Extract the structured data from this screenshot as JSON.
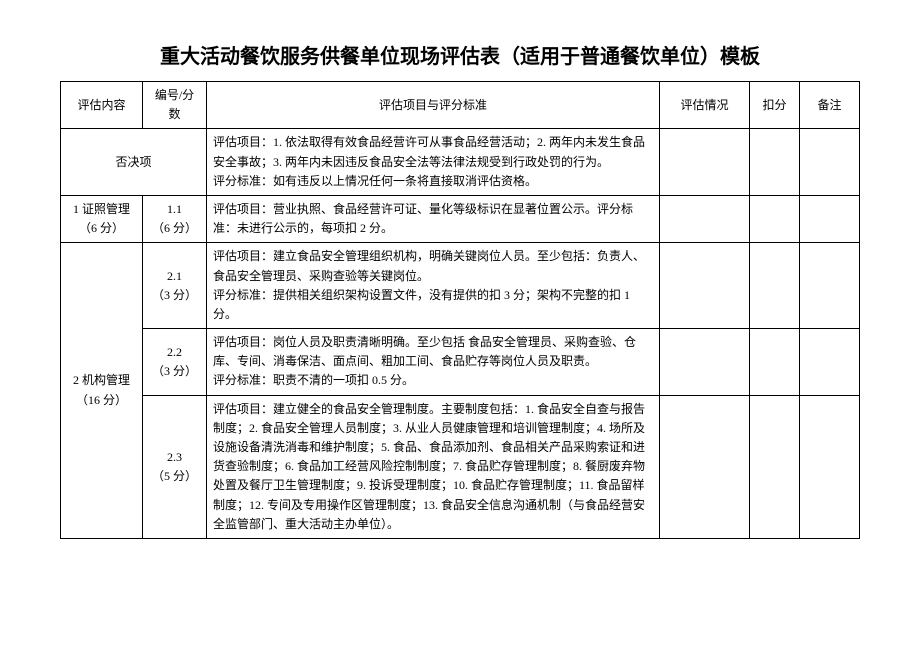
{
  "title": "重大活动餐饮服务供餐单位现场评估表（适用于普通餐饮单位）模板",
  "headers": {
    "category": "评估内容",
    "number": "编号/分数",
    "criteria": "评估项目与评分标准",
    "status": "评估情况",
    "deduct": "扣分",
    "note": "备注"
  },
  "rows": {
    "veto": {
      "category": "否决项",
      "criteria": "评估项目：1. 依法取得有效食品经营许可从事食品经营活动；2. 两年内未发生食品安全事故；3. 两年内未因违反食品安全法等法律法规受到行政处罚的行为。\n评分标准：如有违反以上情况任何一条将直接取消评估资格。"
    },
    "r1": {
      "category": "1 证照管理（6 分）",
      "number": "1.1\n（6 分）",
      "criteria": "评估项目：营业执照、食品经营许可证、量化等级标识在显著位置公示。评分标准：未进行公示的，每项扣 2 分。"
    },
    "r2": {
      "category": "2 机构管理（16 分）",
      "a": {
        "number": "2.1\n（3 分）",
        "criteria": "评估项目：建立食品安全管理组织机构，明确关键岗位人员。至少包括：负责人、食品安全管理员、采购查验等关键岗位。\n评分标准：提供相关组织架构设置文件，没有提供的扣 3 分；架构不完整的扣 1 分。"
      },
      "b": {
        "number": "2.2\n（3 分）",
        "criteria": "评估项目：岗位人员及职责清晰明确。至少包括 食品安全管理员、采购查验、仓库、专间、消毒保洁、面点间、粗加工间、食品贮存等岗位人员及职责。\n评分标准：职责不清的一项扣 0.5 分。"
      },
      "c": {
        "number": "2.3\n（5 分）",
        "criteria": "评估项目：建立健全的食品安全管理制度。主要制度包括：1. 食品安全自查与报告制度；2. 食品安全管理人员制度；3. 从业人员健康管理和培训管理制度；4. 场所及设施设备清洗消毒和维护制度；5. 食品、食品添加剂、食品相关产品采购索证和进货查验制度；6. 食品加工经营风险控制制度；7. 食品贮存管理制度；8. 餐厨废弃物处置及餐厅卫生管理制度；9. 投诉受理制度；10. 食品贮存管理制度；11. 食品留样制度；12. 专间及专用操作区管理制度；13. 食品安全信息沟通机制（与食品经营安全监管部门、重大活动主办单位）。"
      }
    }
  }
}
